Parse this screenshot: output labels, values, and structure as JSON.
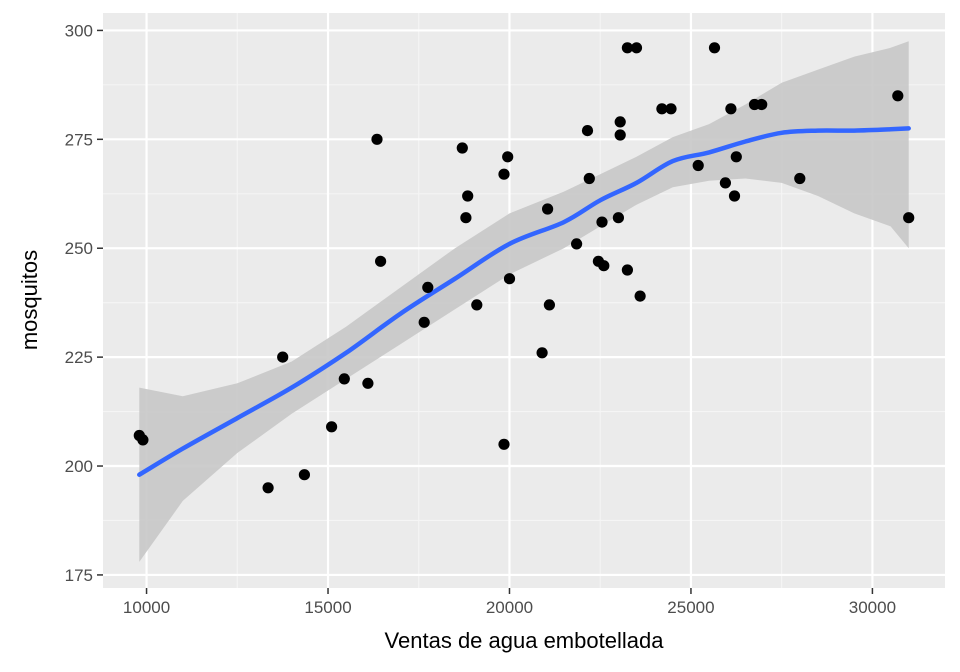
{
  "chart_data": {
    "type": "scatter",
    "title": "",
    "xlabel": "Ventas de agua embotellada",
    "ylabel": "mosquitos",
    "xlim": [
      8800,
      32000
    ],
    "ylim": [
      172,
      304
    ],
    "x_ticks": [
      10000,
      15000,
      20000,
      25000,
      30000
    ],
    "x_tick_labels": [
      "10000",
      "15000",
      "20000",
      "25000",
      "30000"
    ],
    "y_ticks": [
      175,
      200,
      225,
      250,
      275,
      300
    ],
    "y_tick_labels": [
      "175",
      "200",
      "225",
      "250",
      "275",
      "300"
    ],
    "grid": true,
    "legend": "none",
    "colors": {
      "panel_background": "#ebebeb",
      "grid_major": "#ffffff",
      "grid_minor": "#f5f5f5",
      "points": "#000000",
      "smooth_line": "#3366ff",
      "confidence_band": "#c8c8c8"
    },
    "points": [
      {
        "x": 9800,
        "y": 207
      },
      {
        "x": 9900,
        "y": 206
      },
      {
        "x": 13350,
        "y": 195
      },
      {
        "x": 13750,
        "y": 225
      },
      {
        "x": 14350,
        "y": 198
      },
      {
        "x": 15100,
        "y": 209
      },
      {
        "x": 15450,
        "y": 220
      },
      {
        "x": 16100,
        "y": 219
      },
      {
        "x": 16350,
        "y": 275
      },
      {
        "x": 16450,
        "y": 247
      },
      {
        "x": 17650,
        "y": 233
      },
      {
        "x": 17750,
        "y": 241
      },
      {
        "x": 18700,
        "y": 273
      },
      {
        "x": 18800,
        "y": 257
      },
      {
        "x": 18850,
        "y": 262
      },
      {
        "x": 19100,
        "y": 237
      },
      {
        "x": 19850,
        "y": 205
      },
      {
        "x": 19850,
        "y": 267
      },
      {
        "x": 19950,
        "y": 271
      },
      {
        "x": 20000,
        "y": 243
      },
      {
        "x": 20900,
        "y": 226
      },
      {
        "x": 21050,
        "y": 259
      },
      {
        "x": 21100,
        "y": 237
      },
      {
        "x": 21850,
        "y": 251
      },
      {
        "x": 22150,
        "y": 277
      },
      {
        "x": 22200,
        "y": 266
      },
      {
        "x": 22450,
        "y": 247
      },
      {
        "x": 22550,
        "y": 256
      },
      {
        "x": 22600,
        "y": 246
      },
      {
        "x": 23000,
        "y": 257
      },
      {
        "x": 23050,
        "y": 276
      },
      {
        "x": 23050,
        "y": 279
      },
      {
        "x": 23250,
        "y": 296
      },
      {
        "x": 23250,
        "y": 245
      },
      {
        "x": 23500,
        "y": 296
      },
      {
        "x": 23600,
        "y": 239
      },
      {
        "x": 24200,
        "y": 282
      },
      {
        "x": 24450,
        "y": 282
      },
      {
        "x": 25200,
        "y": 269
      },
      {
        "x": 25650,
        "y": 296
      },
      {
        "x": 25950,
        "y": 265
      },
      {
        "x": 26100,
        "y": 282
      },
      {
        "x": 26200,
        "y": 262
      },
      {
        "x": 26250,
        "y": 271
      },
      {
        "x": 26750,
        "y": 283
      },
      {
        "x": 26950,
        "y": 283
      },
      {
        "x": 28000,
        "y": 266
      },
      {
        "x": 30700,
        "y": 285
      },
      {
        "x": 31000,
        "y": 257
      }
    ],
    "smooth": {
      "x": [
        9800,
        11000,
        12500,
        14000,
        15500,
        17000,
        18500,
        20000,
        21500,
        22500,
        23500,
        24500,
        25500,
        26500,
        27500,
        28500,
        29500,
        30500,
        31000
      ],
      "y": [
        198,
        204,
        211,
        218,
        226,
        235,
        243,
        251,
        256,
        261,
        265,
        270,
        272,
        274.5,
        276.5,
        277,
        277,
        277.3,
        277.5
      ],
      "lower": [
        178,
        192,
        203,
        212,
        220,
        228,
        236,
        244,
        250,
        255,
        260,
        264,
        265.5,
        266,
        265,
        262,
        258,
        255,
        250
      ],
      "upper": [
        218,
        216,
        219,
        224,
        232,
        241,
        250,
        258,
        263,
        267,
        271,
        275.5,
        278.5,
        283,
        288,
        291,
        294,
        296,
        297.5
      ]
    }
  }
}
